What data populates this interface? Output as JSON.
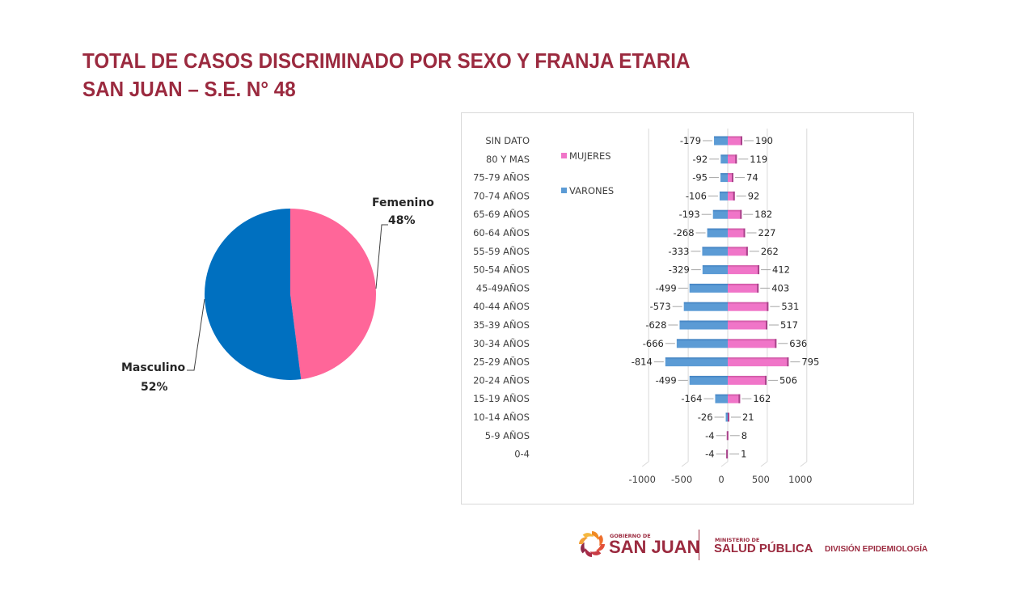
{
  "header": {
    "title_line1": "TOTAL DE CASOS DISCRIMINADO POR SEXO Y FRANJA ETARIA",
    "title_line2": "SAN JUAN – S.E. N° 48"
  },
  "colors": {
    "title": "#9b2a3f",
    "pie_masculino": "#0070c0",
    "pie_femenino": "#ff6699",
    "bar_varones": "#5b9bd5",
    "bar_mujeres": "#f075c8"
  },
  "chart_data": [
    {
      "type": "pie",
      "title": "",
      "slices": [
        {
          "label": "Femenino",
          "value": 48,
          "display": "48%"
        },
        {
          "label": "Masculino",
          "value": 52,
          "display": "52%"
        }
      ]
    },
    {
      "type": "bar",
      "orientation": "horizontal",
      "title": "",
      "xlabel": "",
      "ylabel": "",
      "xlim": [
        -1000,
        1000
      ],
      "xticks": [
        "-1000",
        "-500",
        "0",
        "500",
        "1000"
      ],
      "xtick_values": [
        -1000,
        -500,
        0,
        500,
        1000
      ],
      "grid": true,
      "legend_placement": "top-left",
      "categories": [
        "SIN DATO",
        "80 Y MAS",
        "75-79 AÑOS",
        "70-74 AÑOS",
        "65-69 AÑOS",
        "60-64 AÑOS",
        "55-59 AÑOS",
        "50-54 AÑOS",
        "45-49AÑOS",
        "40-44 AÑOS",
        "35-39 AÑOS",
        "30-34 AÑOS",
        "25-29 AÑOS",
        "20-24 AÑOS",
        "15-19 AÑOS",
        "10-14 AÑOS",
        "5-9 AÑOS",
        "0-4"
      ],
      "series": [
        {
          "name": "MUJERES",
          "values": [
            190,
            119,
            74,
            92,
            182,
            227,
            262,
            412,
            403,
            531,
            517,
            636,
            795,
            506,
            162,
            21,
            8,
            1
          ]
        },
        {
          "name": "VARONES",
          "values": [
            -179,
            -92,
            -95,
            -106,
            -193,
            -268,
            -333,
            -329,
            -499,
            -573,
            -628,
            -666,
            -814,
            -499,
            -164,
            -26,
            -4,
            -4
          ]
        }
      ]
    }
  ],
  "footer": {
    "gov_small": "GOBIERNO DE",
    "gov_big": "SAN JUAN",
    "min_small": "MINISTERIO DE",
    "min_big": "SALUD PÚBLICA",
    "division": "DIVISIÓN EPIDEMIOLOGÍA"
  }
}
